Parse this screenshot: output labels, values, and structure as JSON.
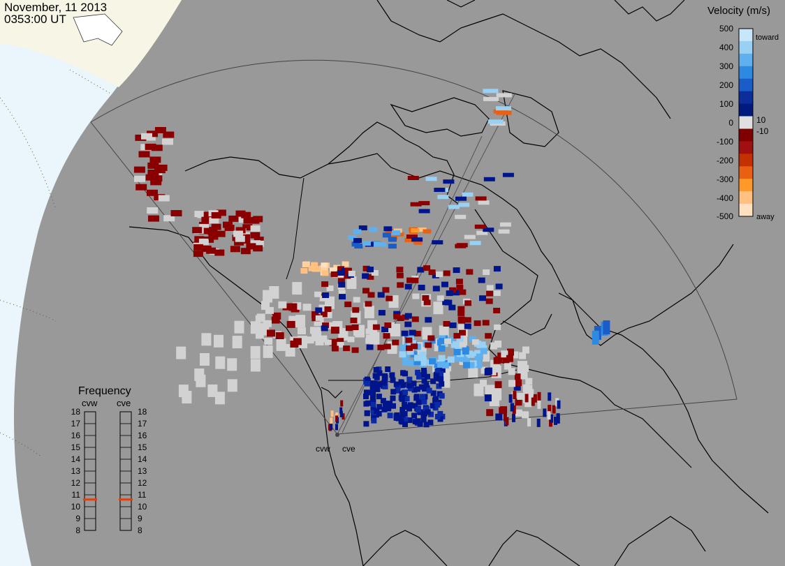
{
  "header": {
    "date": "November, 11 2013",
    "time": "0353:00 UT"
  },
  "radars": [
    "cvw",
    "cve"
  ],
  "legend": {
    "title": "Velocity (m/s)",
    "ticks": [
      "500",
      "400",
      "300",
      "200",
      "100",
      "10",
      "0",
      "-10",
      "-100",
      "-200",
      "-300",
      "-400",
      "-500"
    ],
    "toward_label": "toward",
    "away_label": "away"
  },
  "frequency": {
    "title": "Frequency",
    "columns": [
      "cvw",
      "cve"
    ],
    "ticks": [
      "18",
      "17",
      "16",
      "15",
      "14",
      "13",
      "12",
      "11",
      "10",
      "9",
      "8"
    ],
    "values_mhz": [
      10.6,
      10.6
    ]
  }
}
